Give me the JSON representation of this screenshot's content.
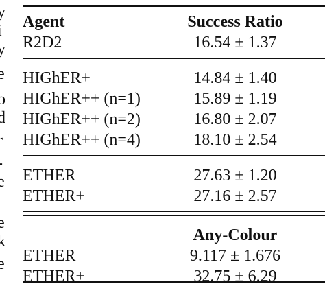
{
  "margin_fragments": [
    "y",
    "i",
    "y",
    "e",
    "o",
    "d",
    "r",
    "-",
    "e",
    "e",
    "k",
    "e"
  ],
  "table": {
    "header": [
      "Agent",
      "Success Ratio"
    ],
    "sections": [
      {
        "rows": [
          [
            "R2D2",
            "16.54 ± 1.37"
          ]
        ]
      },
      {
        "rows": [
          [
            "HIGhER+",
            "14.84 ± 1.40"
          ],
          [
            "HIGhER++ (n=1)",
            "15.89 ± 1.19"
          ],
          [
            "HIGhER++ (n=2)",
            "16.80 ± 2.07"
          ],
          [
            "HIGhER++ (n=4)",
            "18.10 ± 2.54"
          ]
        ]
      },
      {
        "rows": [
          [
            "ETHER",
            "27.63 ± 1.20"
          ],
          [
            "ETHER+",
            "27.16 ± 2.57"
          ]
        ]
      },
      {
        "heading": "Any-Colour",
        "rows": [
          [
            "ETHER",
            "9.117 ± 1.676"
          ],
          [
            "ETHER+",
            "32.75 ± 6.29"
          ]
        ]
      }
    ]
  }
}
